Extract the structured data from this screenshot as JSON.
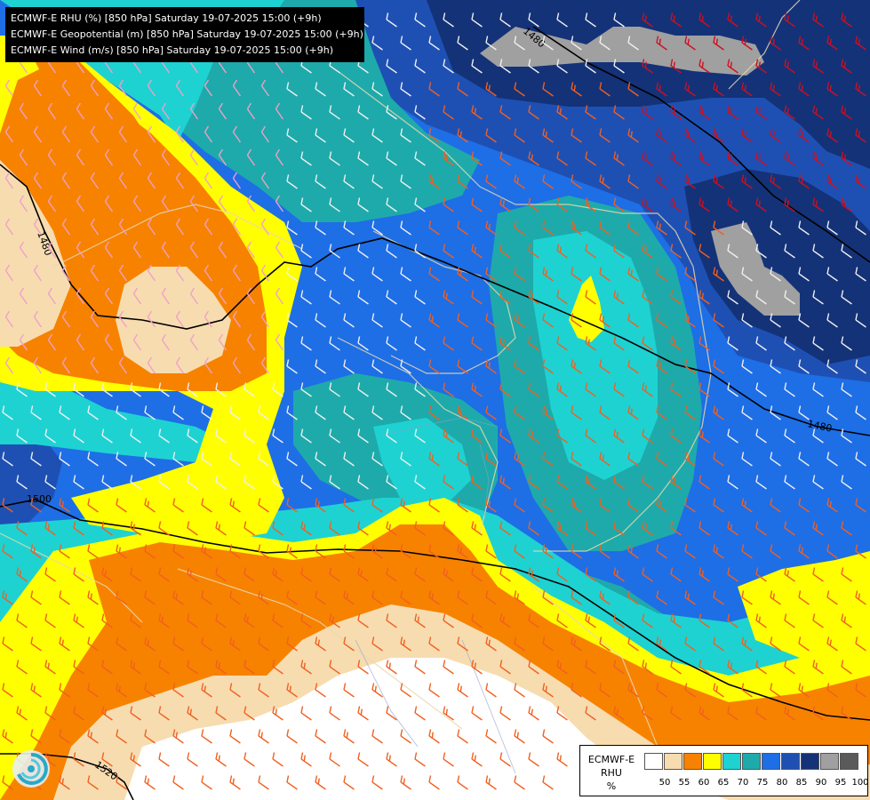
{
  "title_lines": [
    "ECMWF-E RHU (%) [850 hPa] Saturday 19-07-2025 15:00 (+9h)",
    "ECMWF-E Geopotential (m) [850 hPa] Saturday 19-07-2025 15:00 (+9h)",
    "ECMWF-E Wind (m/s) [850 hPa] Saturday 19-07-2025 15:00 (+9h)"
  ],
  "legend": {
    "model": "ECMWF-E",
    "variable": "RHU",
    "unit": "%",
    "levels": [
      "50",
      "55",
      "60",
      "65",
      "70",
      "75",
      "80",
      "85",
      "90",
      "95",
      "100"
    ],
    "colors": [
      "#ffffff",
      "#f7dcb0",
      "#f78200",
      "#ffff00",
      "#1ed2d2",
      "#1eaaaa",
      "#1e6ee6",
      "#1e50b4",
      "#143278",
      "#a0a0a0",
      "#5a5a5a"
    ]
  },
  "contour_labels": [
    "1480",
    "1480",
    "1480",
    "1500",
    "1520"
  ],
  "colors": {
    "white_zone": "#ffffff",
    "pale": "#f7dcb0",
    "orange": "#f78200",
    "yellow": "#ffff00",
    "cyan": "#1ed2d2",
    "teal": "#1eaaaa",
    "blue": "#1e6ee6",
    "midblue": "#1e50b4",
    "darkblue": "#143278",
    "gray": "#a0a0a0"
  },
  "icons": [
    "logo-swirl-icon",
    "wind-barb-icon"
  ]
}
